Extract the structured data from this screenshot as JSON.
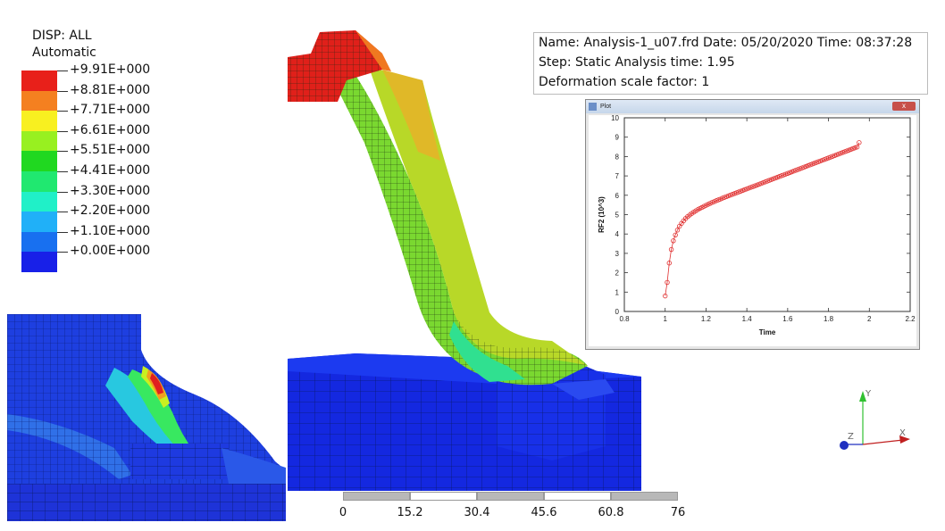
{
  "legend": {
    "title": "DISP: ALL",
    "mode": "Automatic",
    "entries": [
      {
        "label": "+9.91E+000",
        "color": "#e8201a"
      },
      {
        "label": "+8.81E+000",
        "color": "#f48020"
      },
      {
        "label": "+7.71E+000",
        "color": "#f8f020"
      },
      {
        "label": "+6.61E+000",
        "color": "#98f020"
      },
      {
        "label": "+5.51E+000",
        "color": "#20d820"
      },
      {
        "label": "+4.41E+000",
        "color": "#20e870"
      },
      {
        "label": "+3.30E+000",
        "color": "#20f0c8"
      },
      {
        "label": "+2.20E+000",
        "color": "#20b0f8"
      },
      {
        "label": "+1.10E+000",
        "color": "#1870f0"
      },
      {
        "label": "+0.00E+000",
        "color": "#1820e8"
      }
    ]
  },
  "info": {
    "line1": "Name: Analysis-1_u07.frd   Date: 05/20/2020   Time: 08:37:28",
    "line2": "Step: Static   Analysis time: 1.95",
    "line3": "Deformation scale factor: 1"
  },
  "plot_window": {
    "title": "Plot",
    "close_label": "x"
  },
  "chart_data": {
    "type": "scatter",
    "xlabel": "Time",
    "ylabel": "RF2 (10^3)",
    "xlim": [
      0.8,
      2.2
    ],
    "ylim": [
      0,
      10
    ],
    "xticks": [
      "0.8",
      "1",
      "1.2",
      "1.4",
      "1.6",
      "1.8",
      "2",
      "2.2"
    ],
    "yticks": [
      "0",
      "1",
      "2",
      "3",
      "4",
      "5",
      "6",
      "7",
      "8",
      "9",
      "10"
    ],
    "marker_color": "#e03030",
    "x": [
      1.0,
      1.01,
      1.02,
      1.03,
      1.04,
      1.05,
      1.06,
      1.07,
      1.08,
      1.09,
      1.1,
      1.11,
      1.12,
      1.13,
      1.14,
      1.15,
      1.16,
      1.17,
      1.18,
      1.19,
      1.2,
      1.21,
      1.22,
      1.23,
      1.24,
      1.25,
      1.26,
      1.27,
      1.28,
      1.29,
      1.3,
      1.31,
      1.32,
      1.33,
      1.34,
      1.35,
      1.36,
      1.37,
      1.38,
      1.39,
      1.4,
      1.41,
      1.42,
      1.43,
      1.44,
      1.45,
      1.46,
      1.47,
      1.48,
      1.49,
      1.5,
      1.51,
      1.52,
      1.53,
      1.54,
      1.55,
      1.56,
      1.57,
      1.58,
      1.59,
      1.6,
      1.61,
      1.62,
      1.63,
      1.64,
      1.65,
      1.66,
      1.67,
      1.68,
      1.69,
      1.7,
      1.71,
      1.72,
      1.73,
      1.74,
      1.75,
      1.76,
      1.77,
      1.78,
      1.79,
      1.8,
      1.81,
      1.82,
      1.83,
      1.84,
      1.85,
      1.86,
      1.87,
      1.88,
      1.89,
      1.9,
      1.91,
      1.92,
      1.93,
      1.94,
      1.95
    ],
    "y": [
      0.8,
      1.5,
      2.5,
      3.2,
      3.65,
      3.95,
      4.2,
      4.4,
      4.55,
      4.68,
      4.8,
      4.9,
      4.98,
      5.06,
      5.13,
      5.2,
      5.26,
      5.32,
      5.37,
      5.43,
      5.48,
      5.53,
      5.58,
      5.63,
      5.67,
      5.72,
      5.76,
      5.8,
      5.85,
      5.89,
      5.93,
      5.97,
      6.01,
      6.05,
      6.09,
      6.13,
      6.17,
      6.21,
      6.25,
      6.29,
      6.33,
      6.37,
      6.41,
      6.45,
      6.49,
      6.53,
      6.57,
      6.61,
      6.65,
      6.69,
      6.73,
      6.77,
      6.81,
      6.85,
      6.89,
      6.93,
      6.97,
      7.01,
      7.05,
      7.09,
      7.13,
      7.17,
      7.21,
      7.25,
      7.29,
      7.33,
      7.37,
      7.41,
      7.45,
      7.49,
      7.53,
      7.57,
      7.61,
      7.65,
      7.69,
      7.73,
      7.77,
      7.81,
      7.85,
      7.89,
      7.93,
      7.97,
      8.01,
      8.05,
      8.09,
      8.13,
      8.17,
      8.21,
      8.25,
      8.29,
      8.33,
      8.37,
      8.41,
      8.45,
      8.49,
      8.72
    ]
  },
  "scalebar": {
    "labels": [
      "0",
      "15.2",
      "30.4",
      "45.6",
      "60.8",
      "76"
    ]
  },
  "axes_triad": {
    "x": "X",
    "y": "Y",
    "z": "Z"
  }
}
